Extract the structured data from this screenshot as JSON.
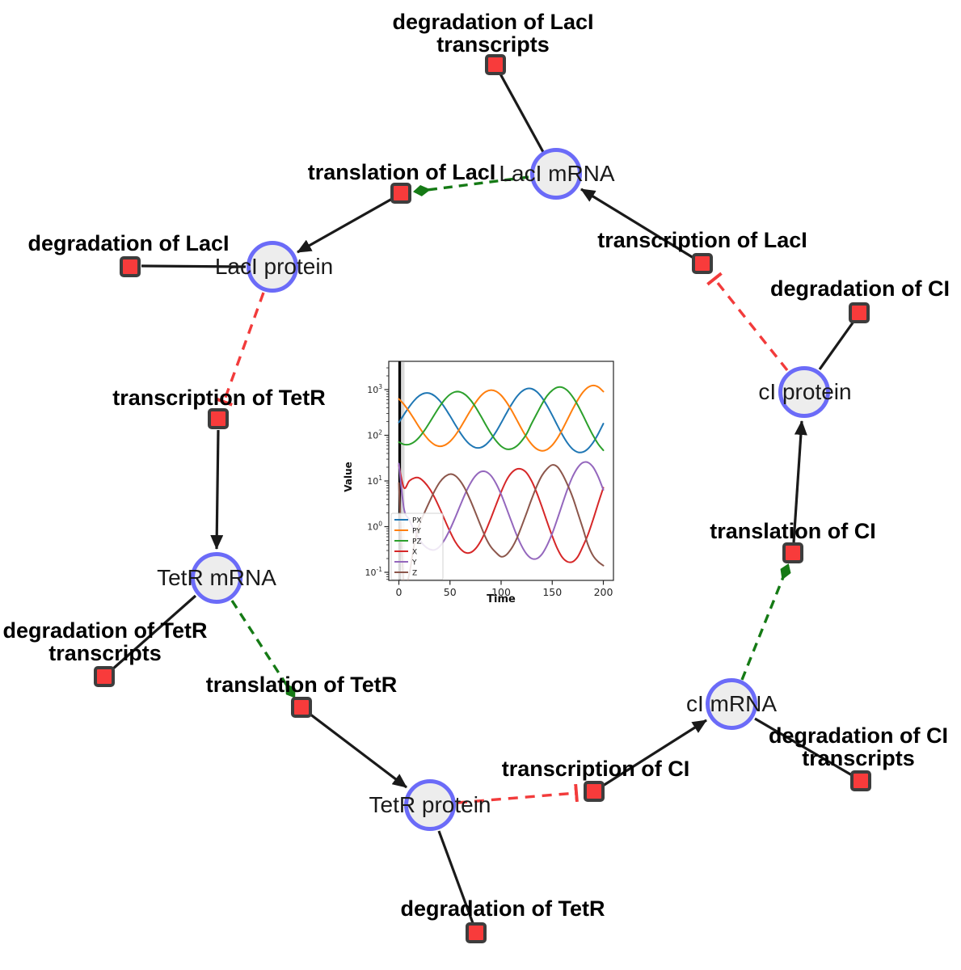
{
  "diagram": {
    "colors": {
      "species_fill": "#ededed",
      "species_border": "#6b6bf8",
      "reaction_fill": "#f83b3b",
      "reaction_border": "#3d3d3d",
      "edge_black": "#1a1a1a",
      "edge_green": "#157a15",
      "edge_red": "#f23b3b"
    },
    "species": [
      {
        "id": "lacI-mrna",
        "label": "LacI mRNA"
      },
      {
        "id": "lacI-protein",
        "label": "LacI protein"
      },
      {
        "id": "tetR-mrna",
        "label": "TetR mRNA"
      },
      {
        "id": "tetR-protein",
        "label": "TetR protein"
      },
      {
        "id": "cI-mrna",
        "label": "cI mRNA"
      },
      {
        "id": "cI-protein",
        "label": "cI protein"
      }
    ],
    "reactions": [
      {
        "id": "degradation-of-lacI-transcripts",
        "lines": [
          "degradation of LacI",
          "transcripts"
        ]
      },
      {
        "id": "translation-of-lacI",
        "lines": [
          "translation of LacI"
        ]
      },
      {
        "id": "transcription-of-lacI",
        "lines": [
          "transcription of LacI"
        ]
      },
      {
        "id": "degradation-of-lacI",
        "lines": [
          "degradation of LacI"
        ]
      },
      {
        "id": "transcription-of-tetR",
        "lines": [
          "transcription of TetR"
        ]
      },
      {
        "id": "degradation-of-tetR-transcripts",
        "lines": [
          "degradation of TetR",
          "transcripts"
        ]
      },
      {
        "id": "translation-of-tetR",
        "lines": [
          "translation of TetR"
        ]
      },
      {
        "id": "degradation-of-tetR",
        "lines": [
          "degradation of TetR"
        ]
      },
      {
        "id": "transcription-of-cI",
        "lines": [
          "transcription of CI"
        ]
      },
      {
        "id": "degradation-of-cI-transcripts",
        "lines": [
          "degradation of CI",
          "transcripts"
        ]
      },
      {
        "id": "translation-of-cI",
        "lines": [
          "translation of CI"
        ]
      },
      {
        "id": "degradation-of-cI",
        "lines": [
          "degradation of CI"
        ]
      }
    ],
    "edges": [
      {
        "source": "degradation-of-lacI-transcripts",
        "target": "lacI-mrna",
        "type": "reactant-line"
      },
      {
        "source": "lacI-mrna",
        "target": "translation-of-lacI",
        "type": "modifier-green-dashed"
      },
      {
        "source": "transcription-of-lacI",
        "target": "lacI-mrna",
        "type": "product-arrow"
      },
      {
        "source": "translation-of-lacI",
        "target": "lacI-protein",
        "type": "product-arrow"
      },
      {
        "source": "lacI-protein",
        "target": "degradation-of-lacI",
        "type": "reactant-line"
      },
      {
        "source": "lacI-protein",
        "target": "transcription-of-tetR",
        "type": "inhibition-red-dashed"
      },
      {
        "source": "transcription-of-tetR",
        "target": "tetR-mrna",
        "type": "product-arrow"
      },
      {
        "source": "tetR-mrna",
        "target": "degradation-of-tetR-transcripts",
        "type": "reactant-line"
      },
      {
        "source": "tetR-mrna",
        "target": "translation-of-tetR",
        "type": "modifier-green-dashed"
      },
      {
        "source": "translation-of-tetR",
        "target": "tetR-protein",
        "type": "product-arrow"
      },
      {
        "source": "tetR-protein",
        "target": "degradation-of-tetR",
        "type": "reactant-line"
      },
      {
        "source": "tetR-protein",
        "target": "transcription-of-cI",
        "type": "inhibition-red-dashed"
      },
      {
        "source": "transcription-of-cI",
        "target": "cI-mrna",
        "type": "product-arrow"
      },
      {
        "source": "cI-mrna",
        "target": "degradation-of-cI-transcripts",
        "type": "reactant-line"
      },
      {
        "source": "cI-mrna",
        "target": "translation-of-cI",
        "type": "modifier-green-dashed"
      },
      {
        "source": "translation-of-cI",
        "target": "cI-protein",
        "type": "product-arrow"
      },
      {
        "source": "cI-protein",
        "target": "degradation-of-cI",
        "type": "reactant-line"
      },
      {
        "source": "cI-protein",
        "target": "transcription-of-lacI",
        "type": "inhibition-red-dashed"
      }
    ]
  },
  "chart_data": {
    "type": "line",
    "title": "",
    "xlabel": "Time",
    "ylabel": "Value",
    "yscale": "log",
    "x_range": [
      0,
      200
    ],
    "ylim_log_exponents": [
      -1.18,
      3.62
    ],
    "xticks": [
      0,
      50,
      100,
      150,
      200
    ],
    "ytick_exponents": [
      -1,
      0,
      1,
      2,
      3
    ],
    "legend_position": "lower left",
    "vline_x": 0.8,
    "x": [
      0,
      5,
      10,
      15,
      20,
      25,
      30,
      35,
      40,
      45,
      50,
      55,
      60,
      65,
      70,
      75,
      80,
      85,
      90,
      95,
      100,
      105,
      110,
      115,
      120,
      125,
      130,
      135,
      140,
      145,
      150,
      155,
      160,
      165,
      170,
      175,
      180,
      185,
      190,
      195,
      200
    ],
    "series": [
      {
        "name": "PX",
        "color": "#1f77b4",
        "values": [
          191,
          284,
          417,
          578,
          734,
          832,
          831,
          728,
          567,
          401,
          266,
          173,
          114,
          80,
          61.5,
          53.7,
          53.8,
          62.2,
          81.7,
          119,
          186,
          297,
          466,
          684,
          904,
          1047,
          1042,
          891,
          664,
          443,
          274,
          165,
          102,
          67.4,
          49.9,
          42.7,
          43,
          50.8,
          69.8,
          108,
          180
        ]
      },
      {
        "name": "PY",
        "color": "#ff7f0e",
        "values": [
          624,
          474,
          333,
          224,
          149,
          103,
          76,
          62.2,
          57.5,
          60.8,
          73.3,
          98.7,
          145,
          224,
          348,
          522,
          724,
          900,
          977,
          919,
          751,
          543,
          358,
          224,
          139,
          89.8,
          63.1,
          50,
          45.7,
          48.9,
          60.8,
          86.1,
          135,
          224,
          373,
          597,
          873,
          1120,
          1230,
          1143,
          906
        ]
      },
      {
        "name": "PZ",
        "color": "#2ca02c",
        "values": [
          71.1,
          63,
          63.1,
          71.6,
          91.2,
          127,
          189,
          288,
          431,
          608,
          782,
          892,
          889,
          774,
          594,
          413,
          268,
          170,
          110,
          75.8,
          57.8,
          50.1,
          50.3,
          57.5,
          74.8,
          108,
          184,
          300,
          486,
          735,
          963,
          1120,
          1115,
          947,
          696,
          456,
          276,
          163,
          98.4,
          64.1,
          46.9
        ]
      },
      {
        "name": "X",
        "color": "#d62728",
        "values": [
          22,
          7.1,
          9.9,
          11.6,
          11.6,
          9.4,
          6.8,
          4.3,
          2.5,
          1.39,
          0.78,
          0.47,
          0.33,
          0.27,
          0.27,
          0.33,
          0.48,
          0.81,
          1.53,
          2.98,
          5.73,
          10.1,
          14.9,
          18.1,
          18.1,
          15,
          9.8,
          5.4,
          2.68,
          1.27,
          0.62,
          0.33,
          0.21,
          0.17,
          0.17,
          0.22,
          0.37,
          0.67,
          1.44,
          3.26,
          7.14
        ]
      },
      {
        "name": "Y",
        "color": "#9467bd",
        "values": [
          24,
          2.48,
          1.43,
          0.84,
          0.53,
          0.38,
          0.32,
          0.31,
          0.37,
          0.53,
          0.87,
          1.56,
          2.9,
          5.3,
          8.9,
          13,
          15.9,
          16,
          13.1,
          8.8,
          5.1,
          2.63,
          1.31,
          0.67,
          0.38,
          0.25,
          0.2,
          0.2,
          0.25,
          0.39,
          0.71,
          1.47,
          3.17,
          6.65,
          12.5,
          19.7,
          25.2,
          25.4,
          20,
          12.3,
          6.4
        ]
      },
      {
        "name": "Z",
        "color": "#8c564b",
        "values": [
          9,
          0.05,
          0.09,
          0.4,
          1.1,
          2,
          3.53,
          6.07,
          9.37,
          12.4,
          14.1,
          13.1,
          10,
          6.56,
          3.73,
          2,
          1.05,
          0.57,
          0.36,
          0.27,
          0.22,
          0.24,
          0.33,
          0.53,
          1.01,
          2,
          4.09,
          7.83,
          13.2,
          18.5,
          22.4,
          20.4,
          14,
          8.26,
          4.4,
          2,
          0.91,
          0.4,
          0.23,
          0.17,
          0.14
        ]
      }
    ]
  }
}
